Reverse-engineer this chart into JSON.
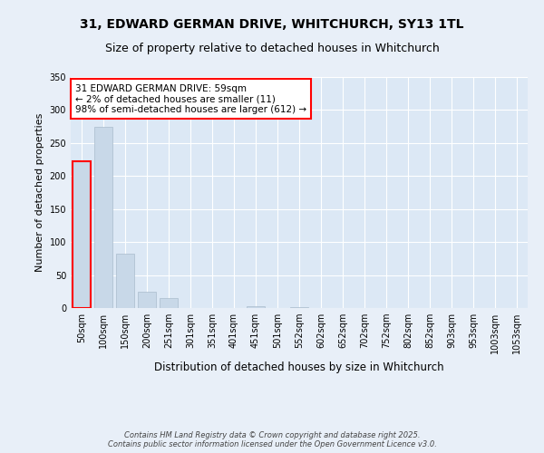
{
  "title_line1": "31, EDWARD GERMAN DRIVE, WHITCHURCH, SY13 1TL",
  "title_line2": "Size of property relative to detached houses in Whitchurch",
  "xlabel": "Distribution of detached houses by size in Whitchurch",
  "ylabel": "Number of detached properties",
  "categories": [
    "50sqm",
    "100sqm",
    "150sqm",
    "200sqm",
    "251sqm",
    "301sqm",
    "351sqm",
    "401sqm",
    "451sqm",
    "501sqm",
    "552sqm",
    "602sqm",
    "652sqm",
    "702sqm",
    "752sqm",
    "802sqm",
    "852sqm",
    "903sqm",
    "953sqm",
    "1003sqm",
    "1053sqm"
  ],
  "values": [
    222,
    275,
    82,
    25,
    15,
    0,
    0,
    0,
    3,
    0,
    1,
    0,
    0,
    0,
    0,
    0,
    0,
    0,
    0,
    0,
    0
  ],
  "bar_color": "#c8d8e8",
  "bar_edge_color": "#aabccc",
  "annotation_text": "31 EDWARD GERMAN DRIVE: 59sqm\n← 2% of detached houses are smaller (11)\n98% of semi-detached houses are larger (612) →",
  "ylim": [
    0,
    350
  ],
  "yticks": [
    0,
    50,
    100,
    150,
    200,
    250,
    300,
    350
  ],
  "background_color": "#e8eff8",
  "plot_bg_color": "#dce8f5",
  "grid_color": "#ffffff",
  "footer_text": "Contains HM Land Registry data © Crown copyright and database right 2025.\nContains public sector information licensed under the Open Government Licence v3.0.",
  "title_fontsize": 10,
  "subtitle_fontsize": 9,
  "tick_fontsize": 7,
  "ylabel_fontsize": 8,
  "xlabel_fontsize": 8.5,
  "annotation_fontsize": 7.5,
  "footer_fontsize": 6
}
